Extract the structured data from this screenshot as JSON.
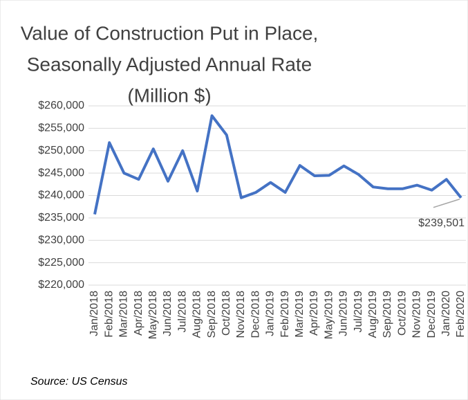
{
  "chart_data": {
    "type": "line",
    "title": [
      "Value of Construction Put in Place,",
      "Seasonally Adjusted Annual Rate",
      "(Million $)"
    ],
    "source": "Source: US Census",
    "categories": [
      "Jan/2018",
      "Feb/2018",
      "Mar/2018",
      "Apr/2018",
      "May/2018",
      "Jun/2018",
      "Jul/2018",
      "Aug/2018",
      "Sep/2018",
      "Oct/2018",
      "Nov/2018",
      "Dec/2018",
      "Jan/2019",
      "Feb/2019",
      "Mar/2019",
      "Apr/2019",
      "May/2019",
      "Jun/2019",
      "Jul/2019",
      "Aug/2019",
      "Sep/2019",
      "Oct/2019",
      "Nov/2019",
      "Dec/2019",
      "Jan/2020",
      "Feb/2020"
    ],
    "series": [
      {
        "name": "Value of Construction Put in Place",
        "color": "#4472c4",
        "values": [
          235800,
          251800,
          245000,
          243600,
          250400,
          243200,
          250000,
          241000,
          257800,
          253500,
          239500,
          240700,
          242900,
          240700,
          246700,
          244400,
          244500,
          246600,
          244700,
          241900,
          241500,
          241500,
          242300,
          241200,
          243600,
          239501
        ],
        "value_labels": [
          null,
          null,
          null,
          null,
          null,
          null,
          null,
          null,
          null,
          null,
          null,
          null,
          null,
          null,
          null,
          null,
          null,
          null,
          null,
          null,
          null,
          null,
          null,
          null,
          null,
          "$239,501"
        ]
      }
    ],
    "ylim": [
      220000,
      260000
    ],
    "yticks": [
      {
        "value": 220000,
        "label": "$220,000"
      },
      {
        "value": 225000,
        "label": "$225,000"
      },
      {
        "value": 230000,
        "label": "$230,000"
      },
      {
        "value": 235000,
        "label": "$235,000"
      },
      {
        "value": 240000,
        "label": "$240,000"
      },
      {
        "value": 245000,
        "label": "$245,000"
      },
      {
        "value": 250000,
        "label": "$250,000"
      },
      {
        "value": 255000,
        "label": "$255,000"
      },
      {
        "value": 260000,
        "label": "$260,000"
      }
    ],
    "grid": true
  }
}
